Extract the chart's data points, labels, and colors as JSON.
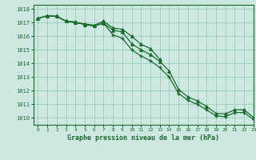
{
  "title": "Graphe pression niveau de la mer (hPa)",
  "background_color": "#cce8e0",
  "grid_color": "#99ccbb",
  "line_color": "#1a6b2e",
  "x": [
    0,
    1,
    2,
    3,
    4,
    5,
    6,
    7,
    8,
    9,
    10,
    11,
    12,
    13,
    14,
    15,
    16,
    17,
    18,
    19,
    20,
    21,
    22,
    23
  ],
  "line1": [
    1017.3,
    1017.5,
    1017.45,
    1017.1,
    1017.0,
    1016.9,
    1016.8,
    1017.1,
    1016.6,
    1016.5,
    1016.0,
    1015.4,
    1015.1,
    1014.3,
    null,
    null,
    null,
    null,
    null,
    null,
    null,
    null,
    null,
    null
  ],
  "line2": [
    1017.3,
    1017.5,
    1017.45,
    1017.1,
    1017.0,
    1016.85,
    1016.75,
    1016.95,
    1016.45,
    1016.3,
    1015.45,
    1015.0,
    1014.65,
    1014.15,
    1013.45,
    1012.1,
    1011.55,
    1011.25,
    1010.85,
    1010.35,
    1010.3,
    1010.6,
    1010.6,
    1010.05
  ],
  "line3": [
    1017.3,
    1017.5,
    1017.45,
    1017.1,
    1017.05,
    1016.85,
    1016.75,
    1016.95,
    1016.1,
    1015.85,
    1015.0,
    1014.55,
    1014.2,
    1013.7,
    1013.0,
    1011.8,
    1011.3,
    1011.0,
    1010.6,
    1010.15,
    1010.1,
    1010.4,
    1010.4,
    1009.9
  ],
  "ylim": [
    1009.5,
    1018.3
  ],
  "yticks": [
    1010,
    1011,
    1012,
    1013,
    1014,
    1015,
    1016,
    1017,
    1018
  ],
  "xlim": [
    -0.5,
    23
  ],
  "xticks": [
    0,
    1,
    2,
    3,
    4,
    5,
    6,
    7,
    8,
    9,
    10,
    11,
    12,
    13,
    14,
    15,
    16,
    17,
    18,
    19,
    20,
    21,
    22,
    23
  ],
  "fig_width": 3.2,
  "fig_height": 2.0,
  "dpi": 100
}
